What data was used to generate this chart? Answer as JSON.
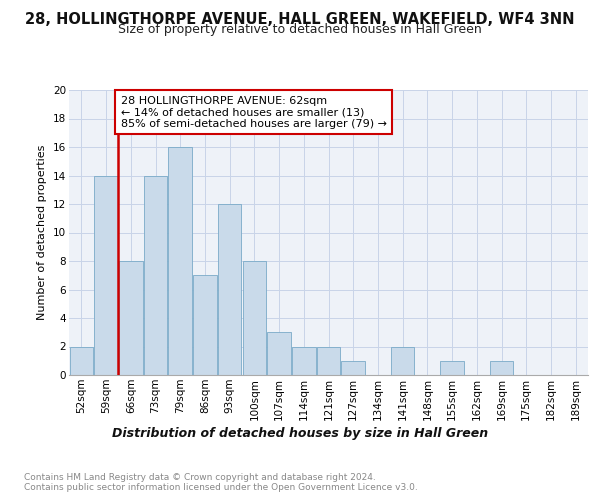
{
  "title": "28, HOLLINGTHORPE AVENUE, HALL GREEN, WAKEFIELD, WF4 3NN",
  "subtitle": "Size of property relative to detached houses in Hall Green",
  "xlabel": "Distribution of detached houses by size in Hall Green",
  "ylabel": "Number of detached properties",
  "categories": [
    "52sqm",
    "59sqm",
    "66sqm",
    "73sqm",
    "79sqm",
    "86sqm",
    "93sqm",
    "100sqm",
    "107sqm",
    "114sqm",
    "121sqm",
    "127sqm",
    "134sqm",
    "141sqm",
    "148sqm",
    "155sqm",
    "162sqm",
    "169sqm",
    "175sqm",
    "182sqm",
    "189sqm"
  ],
  "values": [
    2,
    14,
    8,
    14,
    16,
    7,
    12,
    8,
    3,
    2,
    2,
    1,
    0,
    2,
    0,
    1,
    0,
    1,
    0,
    0,
    0
  ],
  "bar_color": "#c9daea",
  "bar_edge_color": "#7aaac8",
  "vline_x": 1.5,
  "vline_color": "#cc0000",
  "annotation_title": "28 HOLLINGTHORPE AVENUE: 62sqm",
  "annotation_line1": "← 14% of detached houses are smaller (13)",
  "annotation_line2": "85% of semi-detached houses are larger (79) →",
  "annotation_box_facecolor": "#ffffff",
  "annotation_box_edgecolor": "#cc0000",
  "ylim": [
    0,
    20
  ],
  "yticks": [
    0,
    2,
    4,
    6,
    8,
    10,
    12,
    14,
    16,
    18,
    20
  ],
  "grid_color": "#c8d4e8",
  "bg_color": "#eef2f8",
  "footer1": "Contains HM Land Registry data © Crown copyright and database right 2024.",
  "footer2": "Contains public sector information licensed under the Open Government Licence v3.0.",
  "title_fontsize": 10.5,
  "subtitle_fontsize": 9,
  "ylabel_fontsize": 8,
  "xlabel_fontsize": 9,
  "tick_fontsize": 7.5,
  "footer_fontsize": 6.5,
  "annot_fontsize": 8
}
